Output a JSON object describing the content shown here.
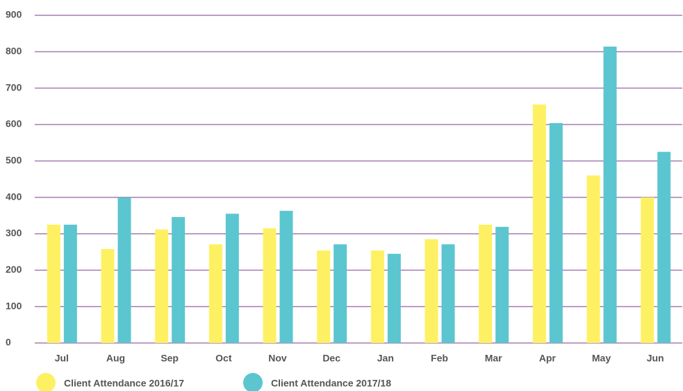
{
  "chart_data": {
    "type": "bar",
    "categories": [
      "Jul",
      "Aug",
      "Sep",
      "Oct",
      "Nov",
      "Dec",
      "Jan",
      "Feb",
      "Mar",
      "Apr",
      "May",
      "Jun"
    ],
    "series": [
      {
        "name": "Client Attendance 2016/17",
        "color": "#fdf163",
        "values": [
          325,
          258,
          312,
          271,
          315,
          254,
          254,
          285,
          325,
          655,
          460,
          400
        ]
      },
      {
        "name": "Client Attendance 2017/18",
        "color": "#5bc6cf",
        "values": [
          325,
          400,
          346,
          355,
          363,
          271,
          245,
          271,
          319,
          604,
          814,
          525
        ]
      }
    ],
    "ylim": [
      0,
      900
    ],
    "yticks": [
      0,
      100,
      200,
      300,
      400,
      500,
      600,
      700,
      800,
      900
    ],
    "grid": true,
    "legend": "bottom-left"
  }
}
